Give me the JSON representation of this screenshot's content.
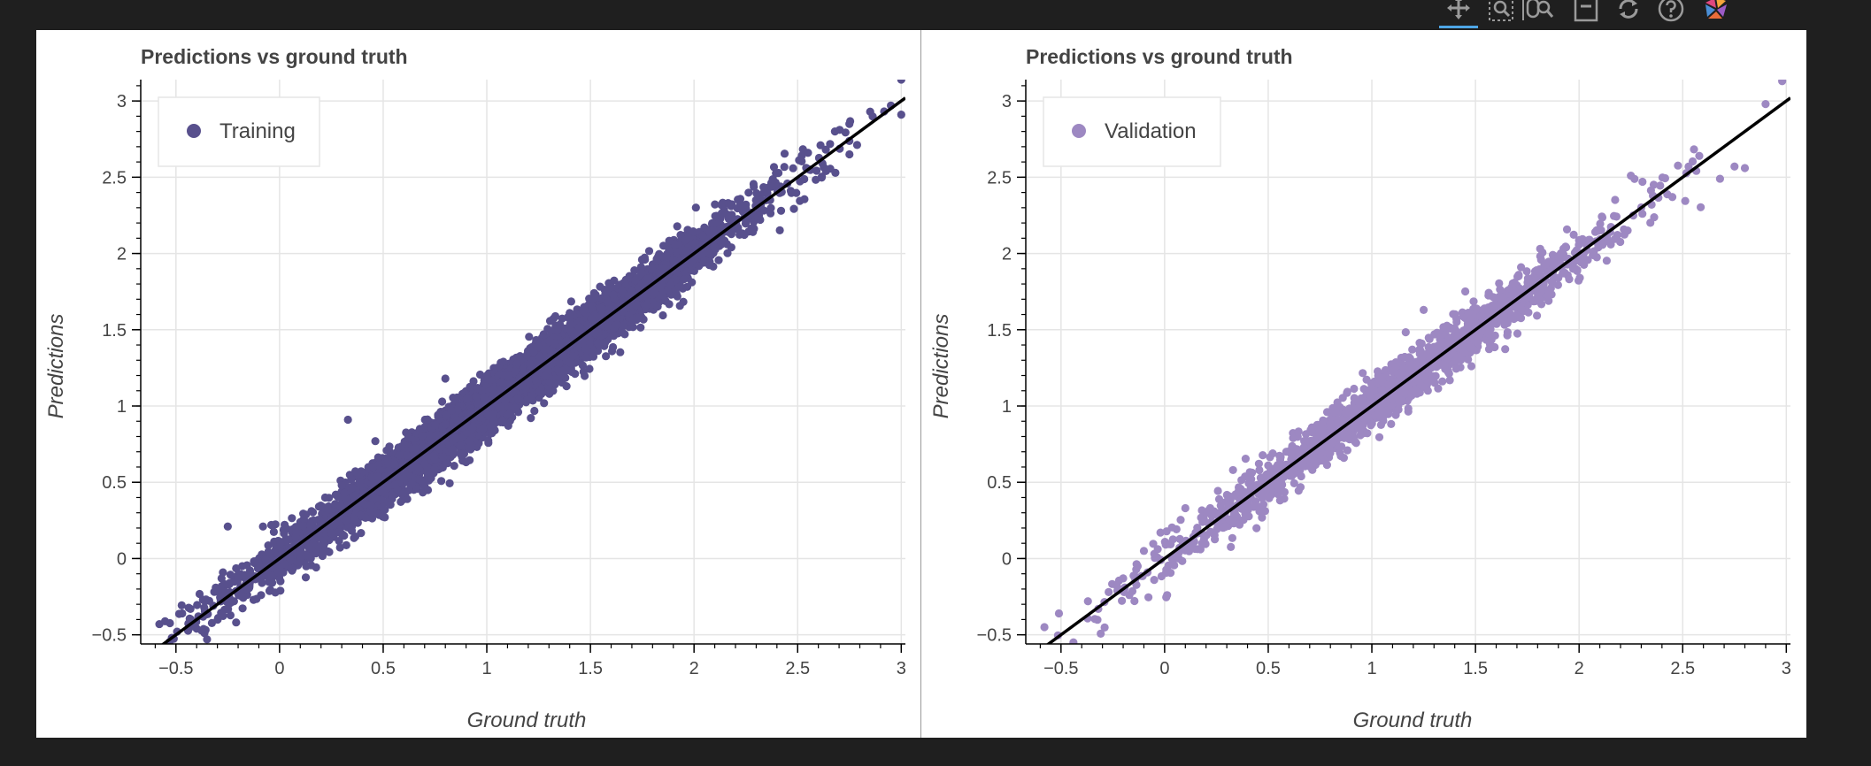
{
  "toolbar": {
    "tools": [
      "pan-icon",
      "box-zoom-icon",
      "wheel-zoom-icon",
      "save-icon",
      "reset-icon",
      "help-icon",
      "bokeh-logo-icon"
    ],
    "active_tool": "pan-icon",
    "accent": "#4ea6e6"
  },
  "chart_data": [
    {
      "type": "scatter",
      "title": "Predictions vs ground truth",
      "xlabel": "Ground truth",
      "ylabel": "Predictions",
      "xlim": [
        -0.67,
        3.02
      ],
      "ylim": [
        -0.56,
        3.14
      ],
      "xticks": [
        "-0.5",
        "0",
        "0.5",
        "1",
        "1.5",
        "2",
        "2.5",
        "3"
      ],
      "yticks": [
        "-0.5",
        "0",
        "0.5",
        "1",
        "1.5",
        "2",
        "2.5",
        "3"
      ],
      "grid": true,
      "legend_position": "top-left",
      "reference_line": {
        "x": [
          -0.67,
          3.02
        ],
        "y": [
          -0.67,
          3.02
        ],
        "color": "#000000"
      },
      "series": [
        {
          "name": "Training",
          "color": "#58508d",
          "approx_point_count": 6000,
          "points": [
            [
              -0.58,
              -0.43
            ],
            [
              -0.52,
              -0.52
            ],
            [
              -0.47,
              -0.36
            ],
            [
              -0.43,
              -0.33
            ],
            [
              -0.4,
              -0.46
            ],
            [
              -0.37,
              -0.27
            ],
            [
              -0.35,
              -0.53
            ],
            [
              -0.32,
              -0.31
            ],
            [
              -0.28,
              -0.13
            ],
            [
              -0.26,
              -0.22
            ],
            [
              -0.24,
              -0.16
            ],
            [
              -0.22,
              -0.28
            ],
            [
              -0.2,
              -0.13
            ],
            [
              -0.18,
              -0.05
            ],
            [
              -0.16,
              -0.19
            ],
            [
              -0.14,
              -0.1
            ],
            [
              -0.12,
              -0.03
            ],
            [
              -0.25,
              0.21
            ],
            [
              -0.08,
              0.21
            ],
            [
              -0.04,
              0.22
            ],
            [
              0.03,
              0.04
            ],
            [
              0.08,
              0.17
            ],
            [
              0.15,
              0.22
            ],
            [
              0.22,
              0.4
            ],
            [
              0.3,
              0.48
            ],
            [
              0.33,
              0.91
            ],
            [
              0.45,
              0.6
            ],
            [
              0.5,
              0.45
            ],
            [
              0.62,
              0.79
            ],
            [
              0.7,
              0.62
            ],
            [
              0.8,
              1.18
            ],
            [
              0.83,
              0.97
            ],
            [
              0.95,
              1.06
            ],
            [
              1.08,
              1.29
            ],
            [
              1.15,
              1.05
            ],
            [
              1.25,
              1.39
            ],
            [
              1.35,
              1.28
            ],
            [
              1.4,
              1.61
            ],
            [
              1.52,
              1.48
            ],
            [
              1.6,
              1.78
            ],
            [
              1.72,
              1.66
            ],
            [
              1.82,
              1.95
            ],
            [
              1.95,
              1.83
            ],
            [
              2.05,
              2.17
            ],
            [
              2.18,
              2.04
            ],
            [
              2.3,
              2.35
            ],
            [
              2.42,
              2.28
            ],
            [
              2.55,
              2.66
            ],
            [
              2.62,
              2.59
            ],
            [
              2.68,
              2.8
            ],
            [
              2.75,
              2.65
            ],
            [
              2.85,
              2.93
            ],
            [
              2.95,
              2.97
            ],
            [
              3.0,
              3.14
            ],
            [
              3.0,
              2.91
            ]
          ]
        }
      ]
    },
    {
      "type": "scatter",
      "title": "Predictions vs ground truth",
      "xlabel": "Ground truth",
      "ylabel": "Predictions",
      "xlim": [
        -0.67,
        3.02
      ],
      "ylim": [
        -0.56,
        3.14
      ],
      "xticks": [
        "-0.5",
        "0",
        "0.5",
        "1",
        "1.5",
        "2",
        "2.5",
        "3"
      ],
      "yticks": [
        "-0.5",
        "0",
        "0.5",
        "1",
        "1.5",
        "2",
        "2.5",
        "3"
      ],
      "grid": true,
      "legend_position": "top-left",
      "reference_line": {
        "x": [
          -0.67,
          3.02
        ],
        "y": [
          -0.67,
          3.02
        ],
        "color": "#000000"
      },
      "series": [
        {
          "name": "Validation",
          "color": "#9d88c2",
          "approx_point_count": 1500,
          "points": [
            [
              -0.58,
              -0.45
            ],
            [
              -0.51,
              -0.36
            ],
            [
              -0.44,
              -0.55
            ],
            [
              -0.37,
              -0.28
            ],
            [
              -0.32,
              -0.33
            ],
            [
              -0.27,
              -0.22
            ],
            [
              -0.23,
              -0.18
            ],
            [
              -0.2,
              -0.13
            ],
            [
              -0.17,
              -0.24
            ],
            [
              -0.13,
              -0.05
            ],
            [
              -0.1,
              0.05
            ],
            [
              -0.05,
              0.03
            ],
            [
              -0.02,
              0.17
            ],
            [
              0.05,
              0.02
            ],
            [
              0.1,
              0.33
            ],
            [
              0.15,
              0.17
            ],
            [
              0.22,
              0.33
            ],
            [
              0.33,
              0.58
            ],
            [
              0.38,
              0.42
            ],
            [
              0.5,
              0.61
            ],
            [
              0.62,
              0.79
            ],
            [
              0.75,
              0.84
            ],
            [
              0.92,
              0.9
            ],
            [
              1.05,
              1.17
            ],
            [
              1.18,
              1.32
            ],
            [
              1.25,
              1.63
            ],
            [
              1.38,
              1.44
            ],
            [
              1.52,
              1.47
            ],
            [
              1.62,
              1.63
            ],
            [
              1.72,
              1.91
            ],
            [
              1.82,
              1.77
            ],
            [
              1.9,
              1.98
            ],
            [
              2.05,
              2.09
            ],
            [
              2.15,
              2.14
            ],
            [
              2.25,
              2.51
            ],
            [
              2.35,
              2.32
            ],
            [
              2.45,
              2.37
            ],
            [
              2.58,
              2.64
            ],
            [
              2.68,
              2.49
            ],
            [
              2.75,
              2.57
            ],
            [
              2.8,
              2.56
            ],
            [
              2.9,
              2.98
            ],
            [
              2.98,
              3.13
            ]
          ]
        }
      ]
    }
  ]
}
